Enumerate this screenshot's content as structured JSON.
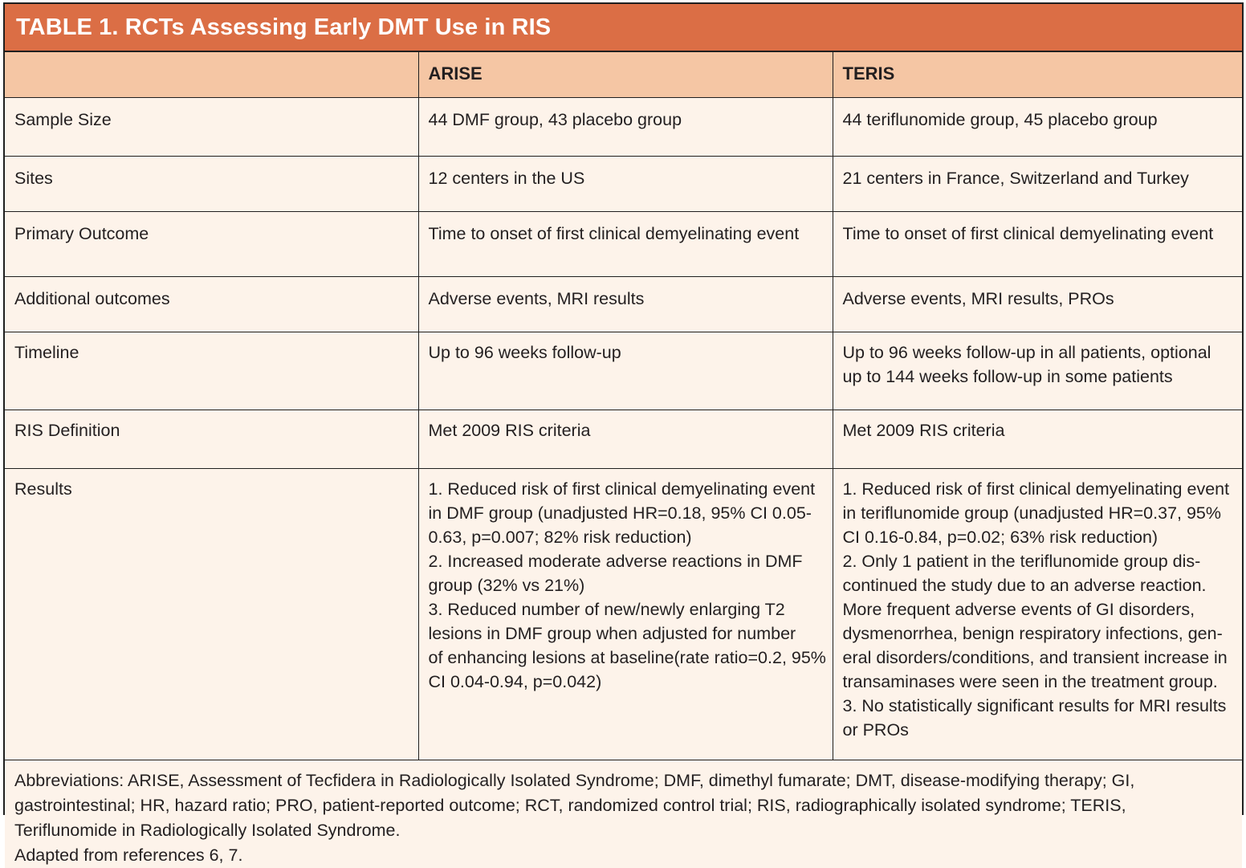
{
  "title": "TABLE 1. RCTs Assessing Early DMT Use in RIS",
  "header": {
    "col0": "",
    "col1": "ARISE",
    "col2": "TERIS"
  },
  "rows": [
    {
      "label": "Sample Size",
      "arise": [
        "44 DMF group, 43 placebo group"
      ],
      "teris": [
        "44 teriflunomide group, 45 placebo group"
      ]
    },
    {
      "label": "Sites",
      "arise": [
        "12 centers in the US"
      ],
      "teris": [
        "21 centers in France, Switzerland and Turkey"
      ]
    },
    {
      "label": "Primary Outcome",
      "arise": [
        "Time to onset of first clinical demyelinating event"
      ],
      "teris": [
        "Time to onset of first clinical demyelinating event"
      ]
    },
    {
      "label": "Additional outcomes",
      "arise": [
        "Adverse events, MRI results"
      ],
      "teris": [
        "Adverse events, MRI results, PROs"
      ]
    },
    {
      "label": "Timeline",
      "arise": [
        "Up to 96 weeks follow-up"
      ],
      "teris": [
        "Up to 96 weeks follow-up in all patients, optional",
        "up to 144 weeks follow-up in some patients"
      ]
    },
    {
      "label": "RIS Definition",
      "arise": [
        "Met 2009 RIS criteria"
      ],
      "teris": [
        "Met 2009 RIS criteria"
      ]
    },
    {
      "label": "Results",
      "arise": [
        "1. Reduced risk of first clinical demyelinating event",
        "in DMF group (unadjusted HR=0.18, 95% CI 0.05-",
        "0.63, p=0.007; 82% risk reduction)",
        "2. Increased moderate adverse reactions in DMF",
        "group (32% vs 21%)",
        "3. Reduced number of new/newly enlarging T2",
        "lesions in DMF group when adjusted for number",
        "of enhancing lesions at baseline(rate ratio=0.2, 95%",
        "CI 0.04-0.94, p=0.042)"
      ],
      "teris": [
        "1. Reduced risk of first clinical demyelinating event",
        "in teriflunomide group (unadjusted HR=0.37, 95%",
        "CI 0.16-0.84, p=0.02; 63% risk reduction)",
        "2. Only 1 patient in the teriflunomide group dis-",
        "continued the study due to an adverse reaction.",
        "More frequent adverse events of GI disorders,",
        "dysmenorrhea, benign respiratory infections, gen-",
        "eral disorders/conditions, and transient increase in",
        "transaminases were seen in the treatment group.",
        "3. No statistically significant results for MRI results",
        "or PROs"
      ]
    }
  ],
  "footnote": {
    "abbreviations": [
      "Abbreviations: ARISE, Assessment of Tecfidera in Radiologically Isolated Syndrome; DMF, dimethyl fumarate; DMT, disease-modifying therapy; GI,",
      "gastrointestinal; HR, hazard ratio; PRO, patient-reported outcome; RCT, randomized control trial; RIS, radiographically isolated syndrome; TERIS,",
      "Teriflunomide in Radiologically Isolated Syndrome."
    ],
    "source": "Adapted from references 6, 7."
  },
  "colors": {
    "title_bg": "#db6e45",
    "header_bg": "#f5c6a4",
    "body_bg": "#fdf3ea"
  }
}
